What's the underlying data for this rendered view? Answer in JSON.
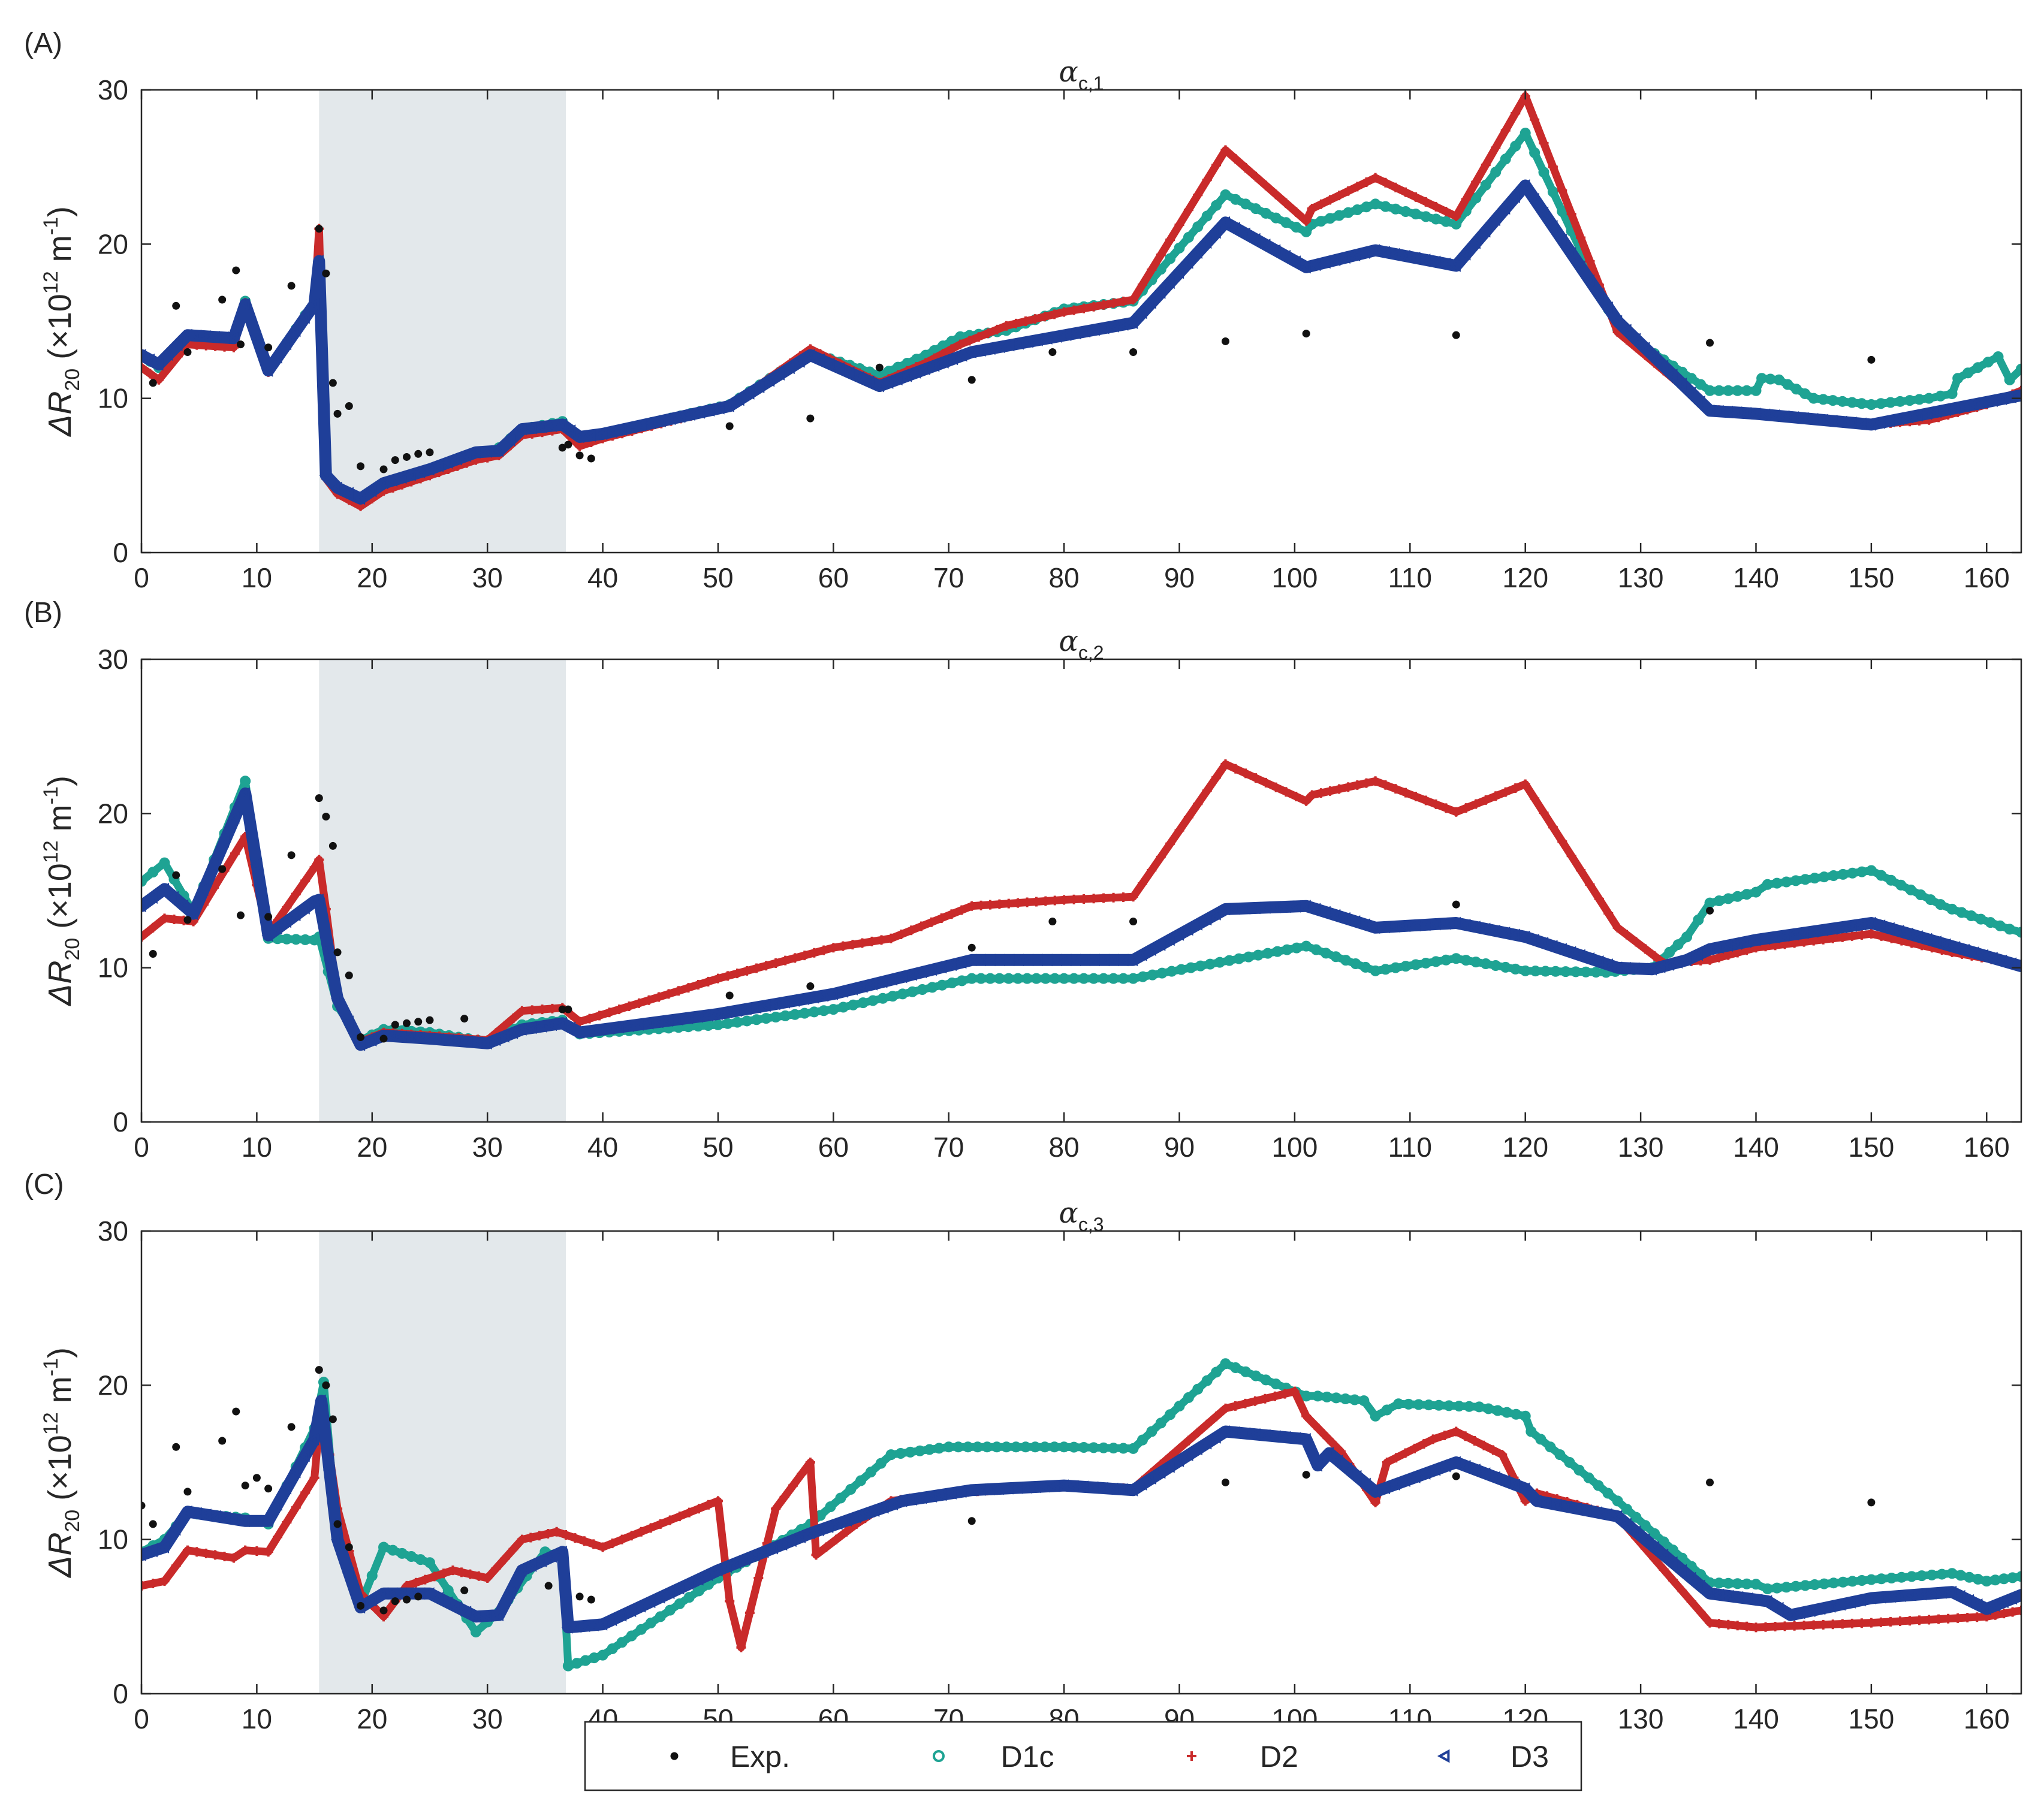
{
  "colors": {
    "Exp.": "#111111",
    "D1c": "#1ea393",
    "D2": "#c92a2a",
    "D3": "#1f3f99",
    "shade": "#e3e8eb",
    "axis": "#262626",
    "background": "#ffffff"
  },
  "chart_data": [
    {
      "type": "scatter",
      "panel_label": "(A)",
      "title_main": "α",
      "title_sub": "c,1",
      "ylabel": "ΔR",
      "ylabel_sub": "20",
      "ylabel_unit_prefix": "(×10",
      "ylabel_unit_exp": "12",
      "ylabel_unit_mid": " m",
      "ylabel_unit_exp2": "-1",
      "ylabel_unit_suffix": ")",
      "xlim": [
        0,
        163
      ],
      "ylim": [
        0,
        30
      ],
      "xticks": [
        0,
        10,
        20,
        30,
        40,
        50,
        60,
        70,
        80,
        90,
        100,
        110,
        120,
        130,
        140,
        150,
        160
      ],
      "yticks": [
        0,
        10,
        20,
        30
      ],
      "grid": false,
      "shaded_region": [
        15.4,
        36.8
      ],
      "series": [
        {
          "name": "Exp.",
          "marker": "dot",
          "x": [
            1,
            3,
            4,
            7,
            8.2,
            8.6,
            11,
            13,
            15.4,
            16,
            16.6,
            17,
            18,
            19,
            21,
            22,
            23,
            24,
            25,
            36.5,
            37,
            38,
            39,
            51,
            58,
            64,
            72,
            79,
            86,
            94,
            101,
            114,
            136,
            150
          ],
          "y": [
            11,
            16,
            13,
            16.4,
            18.3,
            13.5,
            13.3,
            17.3,
            21,
            18.1,
            11,
            9,
            9.5,
            5.6,
            5.4,
            6,
            6.2,
            6.4,
            6.5,
            6.8,
            7,
            6.3,
            6.1,
            8.2,
            8.7,
            12,
            11.2,
            13,
            13,
            13.7,
            14.2,
            14.1,
            13.6,
            12.5
          ]
        },
        {
          "name": "D1c",
          "marker": "circle",
          "x": [
            0,
            1.5,
            4,
            8,
            9,
            11,
            15,
            15.4,
            16,
            17,
            19,
            21,
            25,
            29,
            31,
            33,
            36.5,
            38,
            40,
            51,
            58,
            64,
            68,
            71,
            75,
            80,
            86,
            94,
            101,
            101.5,
            107,
            114,
            120,
            128,
            136,
            140,
            140.5,
            142,
            145,
            150,
            155,
            157,
            157.5,
            161,
            162,
            163
          ],
          "y": [
            12.8,
            12,
            13.8,
            13.6,
            16.3,
            11.8,
            16.3,
            19,
            5,
            4,
            3.5,
            4.3,
            5.2,
            6.3,
            6.8,
            8,
            8.5,
            7.2,
            7.7,
            9.6,
            13,
            11.5,
            12.8,
            14,
            14.4,
            15.8,
            16.3,
            23.2,
            20.8,
            21.3,
            22.6,
            21.3,
            27.2,
            14.5,
            10.5,
            10.5,
            11.3,
            11.2,
            10,
            9.6,
            10,
            10.3,
            11.3,
            12.7,
            11.2,
            11.9
          ]
        },
        {
          "name": "D2",
          "marker": "plus",
          "x": [
            0,
            1.5,
            4,
            8,
            9,
            11,
            15,
            15.4,
            16,
            17,
            19,
            21,
            25,
            29,
            31,
            33,
            36.5,
            38,
            40,
            51,
            58,
            64,
            68,
            71,
            75,
            80,
            86,
            94,
            101,
            101.5,
            107,
            114,
            120,
            128,
            136,
            140,
            150,
            155,
            160,
            163
          ],
          "y": [
            12,
            11.2,
            13.5,
            13.3,
            16.2,
            11.7,
            16,
            21,
            4.8,
            3.8,
            3,
            4,
            5,
            6,
            6.3,
            7.6,
            8,
            6.9,
            7.4,
            9.5,
            13.2,
            11,
            12.3,
            13.5,
            14.7,
            15.6,
            16.4,
            26.1,
            21.5,
            22.3,
            24.3,
            21.8,
            29.6,
            14.3,
            9.3,
            9,
            8.3,
            8.6,
            9.6,
            10.5
          ]
        },
        {
          "name": "D3",
          "marker": "triangle-left",
          "x": [
            0,
            1.5,
            4,
            8,
            9,
            11,
            15,
            15.4,
            16,
            17,
            19,
            21,
            25,
            29,
            31,
            33,
            36.5,
            38,
            40,
            51,
            58,
            64,
            72,
            86,
            94,
            101,
            107,
            114,
            120,
            128,
            136,
            140,
            150,
            163
          ],
          "y": [
            12.8,
            12.2,
            14.1,
            13.9,
            16.1,
            11.8,
            16.1,
            18.9,
            5,
            4.2,
            3.5,
            4.5,
            5.4,
            6.5,
            6.6,
            8,
            8.3,
            7.5,
            7.7,
            9.5,
            12.8,
            10.8,
            13,
            14.9,
            21.4,
            18.5,
            19.6,
            18.6,
            23.8,
            15,
            9.2,
            9,
            8.3,
            10.2
          ]
        }
      ]
    },
    {
      "type": "scatter",
      "panel_label": "(B)",
      "title_main": "α",
      "title_sub": "c,2",
      "ylabel": "ΔR",
      "ylabel_sub": "20",
      "ylabel_unit_prefix": "(×10",
      "ylabel_unit_exp": "12",
      "ylabel_unit_mid": " m",
      "ylabel_unit_exp2": "-1",
      "ylabel_unit_suffix": ")",
      "xlim": [
        0,
        163
      ],
      "ylim": [
        0,
        30
      ],
      "xticks": [
        0,
        10,
        20,
        30,
        40,
        50,
        60,
        70,
        80,
        90,
        100,
        110,
        120,
        130,
        140,
        150,
        160
      ],
      "yticks": [
        0,
        10,
        20,
        30
      ],
      "grid": false,
      "shaded_region": [
        15.4,
        36.8
      ],
      "series": [
        {
          "name": "Exp.",
          "marker": "dot",
          "x": [
            1,
            3,
            4,
            7,
            8.6,
            11,
            13,
            15.4,
            16,
            16.6,
            17,
            18,
            19,
            21,
            22,
            23,
            24,
            25,
            28,
            36.5,
            37,
            51,
            58,
            72,
            79,
            86,
            114,
            136
          ],
          "y": [
            10.9,
            16,
            13.1,
            16.4,
            13.4,
            13.3,
            17.3,
            21,
            19.8,
            17.9,
            11,
            9.5,
            5.5,
            5.4,
            6.3,
            6.4,
            6.5,
            6.6,
            6.7,
            7.3,
            7.3,
            8.2,
            8.8,
            11.3,
            13,
            13,
            14.1,
            13.7
          ]
        },
        {
          "name": "D1c",
          "marker": "circle",
          "x": [
            0,
            2,
            4.5,
            9,
            11,
            15,
            15.4,
            17,
            19,
            21,
            25,
            30,
            33,
            36.5,
            38,
            50,
            60,
            72,
            80,
            86,
            101,
            107,
            114,
            120,
            127,
            131,
            134,
            136,
            140,
            141,
            150,
            156,
            157,
            162,
            163
          ],
          "y": [
            15.6,
            16.8,
            13.6,
            22.1,
            11.9,
            11.8,
            12,
            7.5,
            5.3,
            6,
            5.8,
            5.2,
            6.3,
            6.6,
            5.7,
            6.3,
            7.3,
            9.3,
            9.3,
            9.3,
            11.4,
            9.8,
            10.6,
            9.8,
            9.7,
            10,
            12,
            14.2,
            14.9,
            15.4,
            16.3,
            14.1,
            13.8,
            12.5,
            12.3
          ]
        },
        {
          "name": "D2",
          "marker": "plus",
          "x": [
            0,
            2,
            4.5,
            9,
            11,
            15,
            15.4,
            16,
            17,
            19,
            21,
            25,
            30,
            33,
            36.5,
            38,
            50,
            60,
            65,
            72,
            80,
            86,
            94,
            101,
            101.5,
            107,
            114,
            120,
            128,
            132,
            136,
            140,
            150,
            157,
            163
          ],
          "y": [
            12,
            13.2,
            13,
            18.5,
            12.2,
            16.5,
            17,
            13.8,
            8,
            5.2,
            5.8,
            5.6,
            5.3,
            7.2,
            7.4,
            6.5,
            9.3,
            11.3,
            11.9,
            14,
            14.4,
            14.6,
            23.2,
            20.8,
            21.2,
            22.1,
            20.1,
            21.9,
            12.6,
            10.3,
            10.5,
            11.3,
            12.2,
            11,
            10.2
          ]
        },
        {
          "name": "D3",
          "marker": "triangle-left",
          "x": [
            0,
            2,
            4.5,
            9,
            11,
            15,
            15.4,
            17,
            19,
            21,
            25,
            30,
            33,
            36.5,
            38,
            50,
            60,
            72,
            86,
            94,
            101,
            107,
            114,
            120,
            128,
            131,
            134,
            136,
            140,
            150,
            163
          ],
          "y": [
            14,
            15.1,
            13.5,
            21.3,
            12.1,
            14.3,
            14.4,
            8,
            5,
            5.6,
            5.4,
            5.1,
            6,
            6.4,
            5.8,
            7,
            8.3,
            10.5,
            10.5,
            13.8,
            14,
            12.6,
            12.9,
            12,
            10,
            9.9,
            10.5,
            11.2,
            11.8,
            12.9,
            10.1
          ]
        }
      ]
    },
    {
      "type": "scatter",
      "panel_label": "(C)",
      "title_main": "α",
      "title_sub": "c,3",
      "ylabel": "ΔR",
      "ylabel_sub": "20",
      "ylabel_unit_prefix": "(×10",
      "ylabel_unit_exp": "12",
      "ylabel_unit_mid": " m",
      "ylabel_unit_exp2": "-1",
      "ylabel_unit_suffix": ")",
      "xlim": [
        0,
        163
      ],
      "ylim": [
        0,
        30
      ],
      "xticks": [
        0,
        10,
        20,
        30,
        40,
        50,
        60,
        70,
        80,
        90,
        100,
        110,
        120,
        130,
        140,
        150,
        160
      ],
      "yticks": [
        0,
        10,
        20,
        30
      ],
      "grid": false,
      "shaded_region": [
        15.4,
        36.8
      ],
      "series": [
        {
          "name": "Exp.",
          "marker": "dot",
          "x": [
            0,
            1,
            3,
            4,
            7,
            8.2,
            9,
            10,
            11,
            13,
            15.4,
            16,
            16.6,
            17,
            18,
            19,
            21,
            22,
            23,
            24,
            28,
            35.3,
            38,
            39,
            72,
            94,
            101,
            114,
            136,
            150
          ],
          "y": [
            12.2,
            11,
            16,
            13.1,
            16.4,
            18.3,
            13.5,
            14,
            13.3,
            17.3,
            21,
            20,
            17.8,
            11,
            9.5,
            5.7,
            5.4,
            6,
            6.1,
            6.3,
            6.7,
            7,
            6.3,
            6.1,
            11.2,
            13.7,
            14.2,
            14.1,
            13.7,
            12.4
          ]
        },
        {
          "name": "D1c",
          "marker": "circle",
          "x": [
            0,
            2,
            4,
            9,
            11,
            15,
            15.8,
            17,
            19,
            21,
            25,
            29,
            31,
            35,
            36.5,
            37,
            40,
            50,
            58,
            65,
            70,
            80,
            86,
            94,
            101,
            102,
            106,
            107,
            109,
            116,
            120,
            120.5,
            128,
            136,
            140,
            141,
            150,
            157,
            160,
            163
          ],
          "y": [
            9.2,
            10,
            11.7,
            11.4,
            11,
            17.2,
            20.2,
            10,
            5.8,
            9.5,
            8.5,
            4,
            5.3,
            9.2,
            8.8,
            1.8,
            2.5,
            7.5,
            11,
            15.5,
            16,
            16,
            15.9,
            21.4,
            19.3,
            19.3,
            19,
            18,
            18.8,
            18.6,
            18,
            17,
            12.5,
            7.2,
            7.1,
            6.8,
            7.4,
            7.8,
            7.3,
            7.6
          ]
        },
        {
          "name": "D2",
          "marker": "plus",
          "x": [
            0,
            2,
            4,
            8,
            9,
            11,
            15,
            15.6,
            17,
            19,
            21,
            23,
            27,
            30,
            33,
            36,
            40,
            45,
            50,
            51,
            52,
            55,
            58,
            58.5,
            62,
            65,
            70,
            80,
            86,
            94,
            100,
            101,
            104,
            107,
            108,
            112,
            114,
            118,
            120,
            121,
            128,
            136,
            140,
            150,
            160,
            163
          ],
          "y": [
            7,
            7.3,
            9.3,
            8.8,
            9.3,
            9.2,
            14,
            19,
            12,
            6.5,
            5,
            7,
            8,
            7.5,
            10,
            10.5,
            9.5,
            11,
            12.5,
            6,
            3,
            12,
            15,
            9,
            11,
            12.5,
            13,
            13.5,
            13.3,
            18.5,
            19.6,
            18,
            15.7,
            12.4,
            15,
            16.5,
            17,
            15.5,
            12.5,
            13,
            11.5,
            4.6,
            4.3,
            4.6,
            5,
            5.4
          ]
        },
        {
          "name": "D3",
          "marker": "triangle-left",
          "x": [
            0,
            2,
            4,
            9,
            11,
            15,
            15.6,
            17,
            19,
            21,
            25,
            29,
            31,
            33,
            36.5,
            37,
            40,
            50,
            58,
            66,
            72,
            80,
            86,
            94,
            101,
            102,
            103,
            107,
            114,
            120,
            121,
            128,
            136,
            141,
            143,
            150,
            157,
            160,
            163
          ],
          "y": [
            9,
            9.5,
            11.8,
            11.2,
            11.2,
            16.5,
            19,
            10,
            5.6,
            6.5,
            6.5,
            5,
            5.1,
            8,
            9.2,
            4.3,
            4.5,
            8,
            10.4,
            12.5,
            13.2,
            13.5,
            13.2,
            17,
            16.5,
            14.8,
            15.6,
            13.1,
            15,
            13.3,
            12.5,
            11.5,
            6.5,
            6,
            5.1,
            6.2,
            6.6,
            5.5,
            6.4
          ]
        }
      ]
    }
  ],
  "legend": {
    "items": [
      "Exp.",
      "D1c",
      "D2",
      "D3"
    ]
  }
}
